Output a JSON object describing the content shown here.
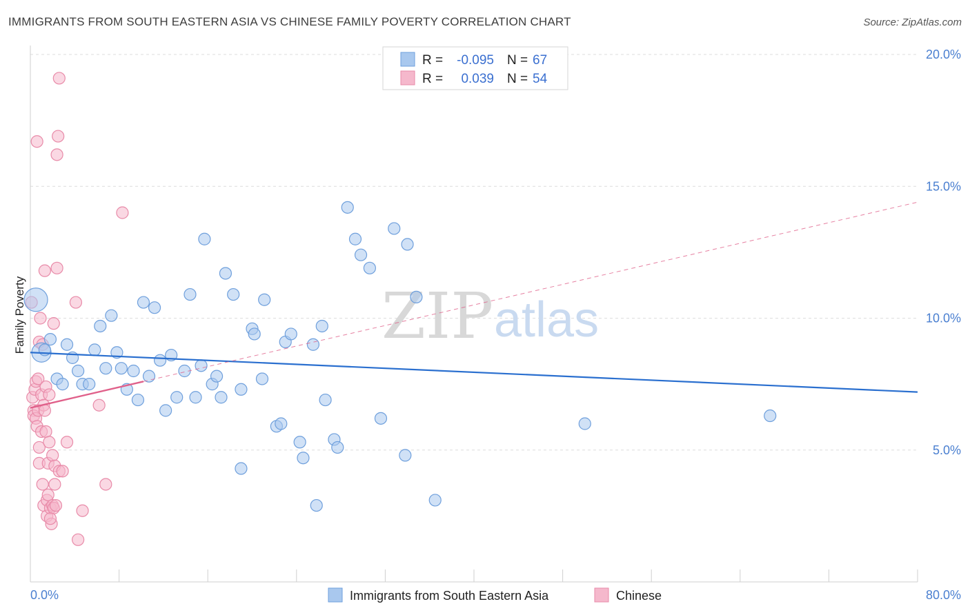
{
  "header": {
    "title": "IMMIGRANTS FROM SOUTH EASTERN ASIA VS CHINESE FAMILY POVERTY CORRELATION CHART",
    "source": "Source: ZipAtlas.com"
  },
  "watermark": {
    "zip": "ZIP",
    "atlas": "atlas"
  },
  "legend_box": {
    "rows": [
      {
        "r_label": "R =",
        "r_value": "-0.095",
        "n_label": "N =",
        "n_value": "67"
      },
      {
        "r_label": "R =",
        "r_value": "0.039",
        "n_label": "N =",
        "n_value": "54"
      }
    ]
  },
  "bottom_legend": {
    "items": [
      {
        "label": "Immigrants from South Eastern Asia"
      },
      {
        "label": "Chinese"
      }
    ]
  },
  "colors": {
    "blue_fill": "#a9c8ee",
    "blue_stroke": "#6e9fdc",
    "blue_line": "#2a6fcf",
    "pink_fill": "#f5b8cc",
    "pink_stroke": "#e88aa8",
    "pink_line": "#e0608a",
    "grid": "#dcdcdc",
    "tick_text": "#4a7fd0"
  },
  "chart_data": {
    "type": "scatter",
    "title": "IMMIGRANTS FROM SOUTH EASTERN ASIA VS CHINESE FAMILY POVERTY CORRELATION CHART",
    "xlabel": "",
    "ylabel": "Family Poverty",
    "xlim": [
      0,
      80
    ],
    "ylim": [
      0,
      20
    ],
    "x_tick_labels": [
      "0.0%",
      "80.0%"
    ],
    "y_ticks": [
      5,
      10,
      15,
      20
    ],
    "y_tick_labels": [
      "5.0%",
      "10.0%",
      "15.0%",
      "20.0%"
    ],
    "grid": true,
    "legend_position": "top-center",
    "series": [
      {
        "name": "Immigrants from South Eastern Asia",
        "r": -0.095,
        "n": 67,
        "trend": {
          "x": [
            0,
            80
          ],
          "y": [
            8.7,
            7.2
          ],
          "style": "solid"
        },
        "points": [
          {
            "x": 0.5,
            "y": 10.7,
            "s": 3
          },
          {
            "x": 1.0,
            "y": 8.7,
            "s": 2
          },
          {
            "x": 1.3,
            "y": 8.8,
            "s": 1
          },
          {
            "x": 1.8,
            "y": 9.2,
            "s": 1
          },
          {
            "x": 2.4,
            "y": 7.7,
            "s": 1
          },
          {
            "x": 2.9,
            "y": 7.5,
            "s": 1
          },
          {
            "x": 3.3,
            "y": 9.0,
            "s": 1
          },
          {
            "x": 3.8,
            "y": 8.5,
            "s": 1
          },
          {
            "x": 4.3,
            "y": 8.0,
            "s": 1
          },
          {
            "x": 4.7,
            "y": 7.5,
            "s": 1
          },
          {
            "x": 5.3,
            "y": 7.5,
            "s": 1
          },
          {
            "x": 5.8,
            "y": 8.8,
            "s": 1
          },
          {
            "x": 6.3,
            "y": 9.7,
            "s": 1
          },
          {
            "x": 6.8,
            "y": 8.1,
            "s": 1
          },
          {
            "x": 7.3,
            "y": 10.1,
            "s": 1
          },
          {
            "x": 7.8,
            "y": 8.7,
            "s": 1
          },
          {
            "x": 8.2,
            "y": 8.1,
            "s": 1
          },
          {
            "x": 8.7,
            "y": 7.3,
            "s": 1
          },
          {
            "x": 9.3,
            "y": 8.0,
            "s": 1
          },
          {
            "x": 9.7,
            "y": 6.9,
            "s": 1
          },
          {
            "x": 10.2,
            "y": 10.6,
            "s": 1
          },
          {
            "x": 10.7,
            "y": 7.8,
            "s": 1
          },
          {
            "x": 11.2,
            "y": 10.4,
            "s": 1
          },
          {
            "x": 11.7,
            "y": 8.4,
            "s": 1
          },
          {
            "x": 12.2,
            "y": 6.5,
            "s": 1
          },
          {
            "x": 12.7,
            "y": 8.6,
            "s": 1
          },
          {
            "x": 13.2,
            "y": 7.0,
            "s": 1
          },
          {
            "x": 13.9,
            "y": 8.0,
            "s": 1
          },
          {
            "x": 14.4,
            "y": 10.9,
            "s": 1
          },
          {
            "x": 14.9,
            "y": 7.0,
            "s": 1
          },
          {
            "x": 15.4,
            "y": 8.2,
            "s": 1
          },
          {
            "x": 15.7,
            "y": 13.0,
            "s": 1
          },
          {
            "x": 16.4,
            "y": 7.5,
            "s": 1
          },
          {
            "x": 16.8,
            "y": 7.8,
            "s": 1
          },
          {
            "x": 17.2,
            "y": 7.0,
            "s": 1
          },
          {
            "x": 17.6,
            "y": 11.7,
            "s": 1
          },
          {
            "x": 18.3,
            "y": 10.9,
            "s": 1
          },
          {
            "x": 19.0,
            "y": 7.3,
            "s": 1
          },
          {
            "x": 19.0,
            "y": 4.3,
            "s": 1
          },
          {
            "x": 20.0,
            "y": 9.6,
            "s": 1
          },
          {
            "x": 20.2,
            "y": 9.4,
            "s": 1
          },
          {
            "x": 20.9,
            "y": 7.7,
            "s": 1
          },
          {
            "x": 21.1,
            "y": 10.7,
            "s": 1
          },
          {
            "x": 22.2,
            "y": 5.9,
            "s": 1
          },
          {
            "x": 22.6,
            "y": 6.0,
            "s": 1
          },
          {
            "x": 23.0,
            "y": 9.1,
            "s": 1
          },
          {
            "x": 23.5,
            "y": 9.4,
            "s": 1
          },
          {
            "x": 24.3,
            "y": 5.3,
            "s": 1
          },
          {
            "x": 24.6,
            "y": 4.7,
            "s": 1
          },
          {
            "x": 25.5,
            "y": 9.0,
            "s": 1
          },
          {
            "x": 25.8,
            "y": 2.9,
            "s": 1
          },
          {
            "x": 26.3,
            "y": 9.7,
            "s": 1
          },
          {
            "x": 26.6,
            "y": 6.9,
            "s": 1
          },
          {
            "x": 27.4,
            "y": 5.4,
            "s": 1
          },
          {
            "x": 27.7,
            "y": 5.1,
            "s": 1
          },
          {
            "x": 28.6,
            "y": 14.2,
            "s": 1
          },
          {
            "x": 29.3,
            "y": 13.0,
            "s": 1
          },
          {
            "x": 29.8,
            "y": 12.4,
            "s": 1
          },
          {
            "x": 30.6,
            "y": 11.9,
            "s": 1
          },
          {
            "x": 31.6,
            "y": 6.2,
            "s": 1
          },
          {
            "x": 32.8,
            "y": 13.4,
            "s": 1
          },
          {
            "x": 33.8,
            "y": 4.8,
            "s": 1
          },
          {
            "x": 34.0,
            "y": 12.8,
            "s": 1
          },
          {
            "x": 34.8,
            "y": 10.8,
            "s": 1
          },
          {
            "x": 36.5,
            "y": 3.1,
            "s": 1
          },
          {
            "x": 50.0,
            "y": 6.0,
            "s": 1
          },
          {
            "x": 66.7,
            "y": 6.3,
            "s": 1
          }
        ]
      },
      {
        "name": "Chinese",
        "r": 0.039,
        "n": 54,
        "trend": {
          "x": [
            0,
            10.2
          ],
          "y": [
            6.6,
            7.6
          ],
          "style": "solid"
        },
        "trend_extension": {
          "x": [
            10.2,
            80
          ],
          "y": [
            7.6,
            14.4
          ],
          "style": "dashed"
        },
        "points": [
          {
            "x": 0.1,
            "y": 10.6,
            "s": 1
          },
          {
            "x": 0.2,
            "y": 7.0,
            "s": 1
          },
          {
            "x": 0.3,
            "y": 6.5,
            "s": 1
          },
          {
            "x": 0.3,
            "y": 6.3,
            "s": 1
          },
          {
            "x": 0.4,
            "y": 7.3,
            "s": 1
          },
          {
            "x": 0.5,
            "y": 7.6,
            "s": 1
          },
          {
            "x": 0.5,
            "y": 6.2,
            "s": 1
          },
          {
            "x": 0.6,
            "y": 16.7,
            "s": 1
          },
          {
            "x": 0.6,
            "y": 5.9,
            "s": 1
          },
          {
            "x": 0.7,
            "y": 7.7,
            "s": 1
          },
          {
            "x": 0.7,
            "y": 6.5,
            "s": 1
          },
          {
            "x": 0.8,
            "y": 9.1,
            "s": 1
          },
          {
            "x": 0.8,
            "y": 5.1,
            "s": 1
          },
          {
            "x": 0.8,
            "y": 4.5,
            "s": 1
          },
          {
            "x": 0.9,
            "y": 10.0,
            "s": 1
          },
          {
            "x": 1.0,
            "y": 7.1,
            "s": 1
          },
          {
            "x": 1.0,
            "y": 5.7,
            "s": 1
          },
          {
            "x": 1.1,
            "y": 9.0,
            "s": 1
          },
          {
            "x": 1.1,
            "y": 3.7,
            "s": 1
          },
          {
            "x": 1.2,
            "y": 6.7,
            "s": 1
          },
          {
            "x": 1.2,
            "y": 2.9,
            "s": 1
          },
          {
            "x": 1.3,
            "y": 11.8,
            "s": 1
          },
          {
            "x": 1.3,
            "y": 6.5,
            "s": 1
          },
          {
            "x": 1.4,
            "y": 7.4,
            "s": 1
          },
          {
            "x": 1.4,
            "y": 5.7,
            "s": 1
          },
          {
            "x": 1.5,
            "y": 3.1,
            "s": 1
          },
          {
            "x": 1.5,
            "y": 2.5,
            "s": 1
          },
          {
            "x": 1.6,
            "y": 4.5,
            "s": 1
          },
          {
            "x": 1.6,
            "y": 3.3,
            "s": 1
          },
          {
            "x": 1.7,
            "y": 7.1,
            "s": 1
          },
          {
            "x": 1.7,
            "y": 5.3,
            "s": 1
          },
          {
            "x": 1.8,
            "y": 2.8,
            "s": 1
          },
          {
            "x": 1.9,
            "y": 2.2,
            "s": 1
          },
          {
            "x": 2.0,
            "y": 4.8,
            "s": 1
          },
          {
            "x": 2.0,
            "y": 2.9,
            "s": 1
          },
          {
            "x": 2.1,
            "y": 9.8,
            "s": 1
          },
          {
            "x": 2.1,
            "y": 2.8,
            "s": 1
          },
          {
            "x": 2.2,
            "y": 4.4,
            "s": 1
          },
          {
            "x": 2.2,
            "y": 3.7,
            "s": 1
          },
          {
            "x": 2.3,
            "y": 2.9,
            "s": 1
          },
          {
            "x": 2.4,
            "y": 16.2,
            "s": 1
          },
          {
            "x": 2.4,
            "y": 11.9,
            "s": 1
          },
          {
            "x": 2.5,
            "y": 16.9,
            "s": 1
          },
          {
            "x": 2.6,
            "y": 19.1,
            "s": 1
          },
          {
            "x": 2.6,
            "y": 4.2,
            "s": 1
          },
          {
            "x": 2.9,
            "y": 4.2,
            "s": 1
          },
          {
            "x": 3.3,
            "y": 5.3,
            "s": 1
          },
          {
            "x": 4.1,
            "y": 10.6,
            "s": 1
          },
          {
            "x": 4.3,
            "y": 1.6,
            "s": 1
          },
          {
            "x": 4.7,
            "y": 2.7,
            "s": 1
          },
          {
            "x": 6.2,
            "y": 6.7,
            "s": 1
          },
          {
            "x": 6.8,
            "y": 3.7,
            "s": 1
          },
          {
            "x": 8.3,
            "y": 14.0,
            "s": 1
          },
          {
            "x": 1.8,
            "y": 2.4,
            "s": 1
          }
        ]
      }
    ]
  }
}
